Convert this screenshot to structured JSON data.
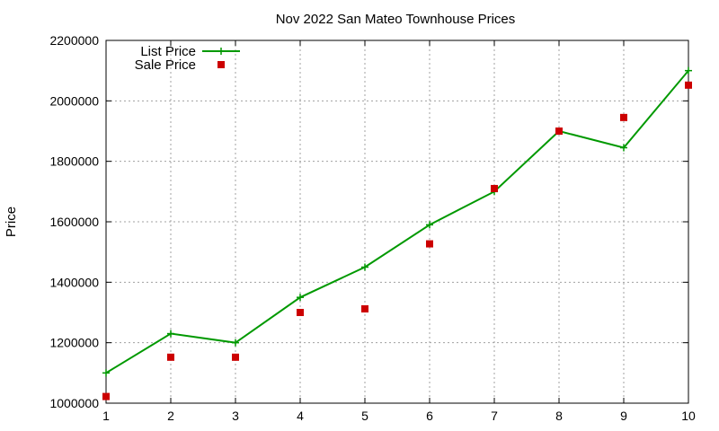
{
  "chart_data": {
    "type": "line",
    "title": "Nov 2022 San Mateo Townhouse Prices",
    "xlabel": "",
    "ylabel": "Price",
    "xlim": [
      1,
      10
    ],
    "ylim": [
      1000000,
      2200000
    ],
    "x_ticks": [
      1,
      2,
      3,
      4,
      5,
      6,
      7,
      8,
      9,
      10
    ],
    "y_ticks": [
      1000000,
      1200000,
      1400000,
      1600000,
      1800000,
      2000000,
      2200000
    ],
    "grid": true,
    "legend_position": "top-left",
    "series": [
      {
        "name": "List Price",
        "style": "line-with-plus-markers",
        "color": "#009900",
        "x": [
          1,
          2,
          3,
          4,
          5,
          6,
          7,
          8,
          9,
          10
        ],
        "values": [
          1100000,
          1230000,
          1200000,
          1350000,
          1450000,
          1590000,
          1700000,
          1900000,
          1845000,
          2100000
        ]
      },
      {
        "name": "Sale Price",
        "style": "square-markers",
        "color": "#cc0000",
        "x": [
          1,
          2,
          3,
          4,
          5,
          6,
          7,
          8,
          9,
          10
        ],
        "values": [
          1022000,
          1152000,
          1152000,
          1300000,
          1312000,
          1527000,
          1710000,
          1900000,
          1945000,
          2052000
        ]
      }
    ]
  }
}
